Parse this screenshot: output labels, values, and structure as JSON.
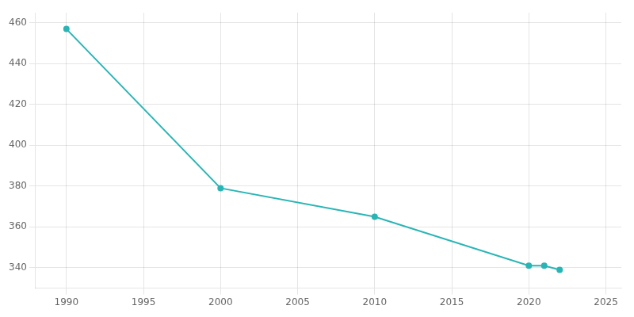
{
  "chart_data": {
    "type": "line",
    "x": [
      1990,
      2000,
      2010,
      2020,
      2021,
      2022
    ],
    "values": [
      457,
      379,
      365,
      341,
      341,
      339
    ],
    "color": "#2ab5b5",
    "marker": "circle",
    "xlim": [
      1988,
      2026
    ],
    "ylim": [
      330,
      465
    ],
    "xticks": [
      1990,
      1995,
      2000,
      2005,
      2010,
      2015,
      2020,
      2025
    ],
    "yticks": [
      340,
      360,
      380,
      400,
      420,
      440,
      460
    ],
    "grid": true
  }
}
